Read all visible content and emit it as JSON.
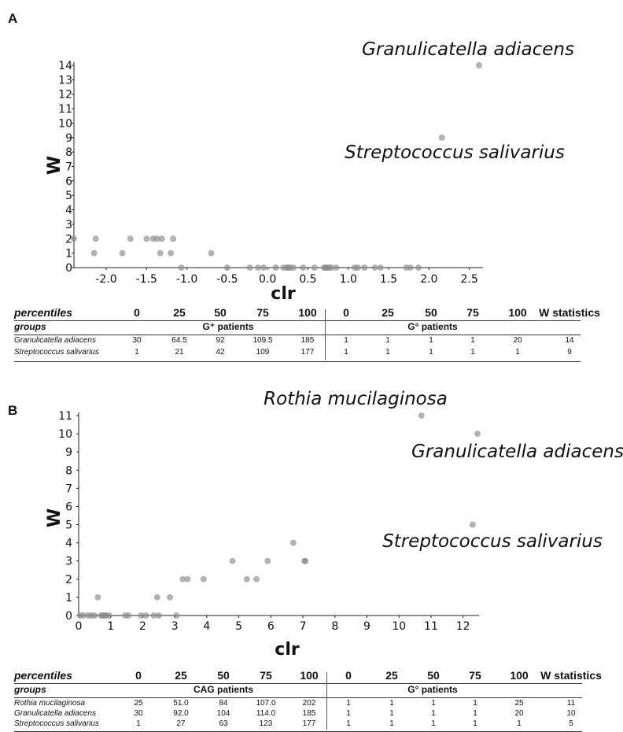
{
  "panels": [
    {
      "letter": "A",
      "stats_table": {
        "header": [
          "percentiles",
          "0",
          "25",
          "50",
          "75",
          "100",
          "0",
          "25",
          "50",
          "75",
          "100",
          "W statistics"
        ],
        "groups_label": "groups",
        "group1": "G⁺ patients",
        "group2": "G° patients",
        "rows": [
          [
            "Granulicatella adiacens",
            "30",
            "64.5",
            "92",
            "109.5",
            "185",
            "1",
            "1",
            "1",
            "1",
            "20",
            "14"
          ],
          [
            "Streptococcus salivarius",
            "1",
            "21",
            "42",
            "109",
            "177",
            "1",
            "1",
            "1",
            "1",
            "1",
            "9"
          ]
        ]
      }
    },
    {
      "letter": "B",
      "stats_table": {
        "header": [
          "percentiles",
          "0",
          "25",
          "50",
          "75",
          "100",
          "0",
          "25",
          "50",
          "75",
          "100",
          "W statistics"
        ],
        "groups_label": "groups",
        "group1": "CAG patients",
        "group2": "G° patients",
        "rows": [
          [
            "Rothia mucilaginosa",
            "25",
            "51.0",
            "84",
            "107.0",
            "202",
            "1",
            "1",
            "1",
            "1",
            "25",
            "11"
          ],
          [
            "Granulicatella adiacens",
            "30",
            "92.0",
            "104",
            "114.0",
            "185",
            "1",
            "1",
            "1",
            "1",
            "20",
            "10"
          ],
          [
            "Streptococcus salivarius",
            "1",
            "27",
            "63",
            "123",
            "177",
            "1",
            "1",
            "1",
            "1",
            "1",
            "5"
          ]
        ]
      }
    }
  ],
  "chart_data": [
    {
      "type": "scatter",
      "xlabel": "clr",
      "ylabel": "W",
      "xlim": [
        -2.4,
        2.65
      ],
      "ylim": [
        0,
        14
      ],
      "xticks": [
        "-2.0",
        "-1.5",
        "-1.0",
        "-0.5",
        "0.0",
        "0.5",
        "1.0",
        "1.5",
        "2.0",
        "2.5"
      ],
      "xtick_values": [
        -2.0,
        -1.5,
        -1.0,
        -0.5,
        0.0,
        0.5,
        1.0,
        1.5,
        2.0,
        2.5
      ],
      "yticks": [
        "0",
        "1",
        "2",
        "3",
        "4",
        "5",
        "6",
        "7",
        "8",
        "9",
        "10",
        "11",
        "12",
        "13",
        "14"
      ],
      "grid": false,
      "point_color": "#8a8a8a",
      "points": [
        {
          "x": -2.4,
          "y": 2
        },
        {
          "x": -2.13,
          "y": 2
        },
        {
          "x": -2.15,
          "y": 1
        },
        {
          "x": -1.8,
          "y": 1
        },
        {
          "x": -1.7,
          "y": 2
        },
        {
          "x": -1.5,
          "y": 2
        },
        {
          "x": -1.42,
          "y": 2
        },
        {
          "x": -1.37,
          "y": 2
        },
        {
          "x": -1.33,
          "y": 1
        },
        {
          "x": -1.31,
          "y": 2
        },
        {
          "x": -1.2,
          "y": 1
        },
        {
          "x": -1.17,
          "y": 2
        },
        {
          "x": -1.07,
          "y": 0
        },
        {
          "x": -0.7,
          "y": 1
        },
        {
          "x": -0.5,
          "y": 0
        },
        {
          "x": -0.22,
          "y": 0
        },
        {
          "x": -0.12,
          "y": 0
        },
        {
          "x": -0.05,
          "y": 0
        },
        {
          "x": 0.1,
          "y": 0
        },
        {
          "x": 0.2,
          "y": 0
        },
        {
          "x": 0.24,
          "y": 0
        },
        {
          "x": 0.26,
          "y": 0
        },
        {
          "x": 0.28,
          "y": 0
        },
        {
          "x": 0.32,
          "y": 0
        },
        {
          "x": 0.44,
          "y": 0
        },
        {
          "x": 0.58,
          "y": 0
        },
        {
          "x": 0.7,
          "y": 0
        },
        {
          "x": 0.72,
          "y": 0
        },
        {
          "x": 0.74,
          "y": 0
        },
        {
          "x": 0.76,
          "y": 0
        },
        {
          "x": 0.79,
          "y": 0
        },
        {
          "x": 0.85,
          "y": 0
        },
        {
          "x": 1.08,
          "y": 0
        },
        {
          "x": 1.12,
          "y": 0
        },
        {
          "x": 1.2,
          "y": 0
        },
        {
          "x": 1.33,
          "y": 0
        },
        {
          "x": 1.4,
          "y": 0
        },
        {
          "x": 1.72,
          "y": 0
        },
        {
          "x": 1.77,
          "y": 0
        },
        {
          "x": 1.87,
          "y": 0
        },
        {
          "x": 2.16,
          "y": 9,
          "label": "Streptococcus salivarius"
        },
        {
          "x": 2.62,
          "y": 14,
          "label": "Granulicatella adiacens"
        }
      ]
    },
    {
      "type": "scatter",
      "xlabel": "clr",
      "ylabel": "W",
      "xlim": [
        0,
        12.45
      ],
      "ylim": [
        0,
        11
      ],
      "xticks": [
        "0",
        "1",
        "2",
        "3",
        "4",
        "5",
        "6",
        "7",
        "8",
        "9",
        "10",
        "11",
        "12"
      ],
      "xtick_values": [
        0,
        1,
        2,
        3,
        4,
        5,
        6,
        7,
        8,
        9,
        10,
        11,
        12
      ],
      "yticks": [
        "0",
        "1",
        "2",
        "3",
        "4",
        "5",
        "6",
        "7",
        "8",
        "9",
        "10",
        "11"
      ],
      "grid": false,
      "point_color": "#8a8a8a",
      "points": [
        {
          "x": 0.05,
          "y": 0
        },
        {
          "x": 0.15,
          "y": 0
        },
        {
          "x": 0.3,
          "y": 0
        },
        {
          "x": 0.4,
          "y": 0
        },
        {
          "x": 0.5,
          "y": 0
        },
        {
          "x": 0.6,
          "y": 1
        },
        {
          "x": 0.7,
          "y": 0
        },
        {
          "x": 0.75,
          "y": 0
        },
        {
          "x": 0.8,
          "y": 0
        },
        {
          "x": 0.85,
          "y": 0
        },
        {
          "x": 0.95,
          "y": 0
        },
        {
          "x": 1.45,
          "y": 0
        },
        {
          "x": 1.55,
          "y": 0
        },
        {
          "x": 1.95,
          "y": 0
        },
        {
          "x": 2.1,
          "y": 0
        },
        {
          "x": 2.35,
          "y": 0
        },
        {
          "x": 2.45,
          "y": 1
        },
        {
          "x": 2.5,
          "y": 0
        },
        {
          "x": 2.85,
          "y": 1
        },
        {
          "x": 3.05,
          "y": 0
        },
        {
          "x": 3.25,
          "y": 2
        },
        {
          "x": 3.4,
          "y": 2
        },
        {
          "x": 3.9,
          "y": 2
        },
        {
          "x": 4.8,
          "y": 3
        },
        {
          "x": 5.25,
          "y": 2
        },
        {
          "x": 5.55,
          "y": 2
        },
        {
          "x": 5.9,
          "y": 3
        },
        {
          "x": 6.7,
          "y": 4
        },
        {
          "x": 7.05,
          "y": 3
        },
        {
          "x": 7.08,
          "y": 3
        },
        {
          "x": 10.7,
          "y": 11,
          "label": "Rothia mucilaginosa"
        },
        {
          "x": 12.45,
          "y": 10,
          "label": "Granulicatella adiacens"
        },
        {
          "x": 12.3,
          "y": 5,
          "label": "Streptococcus salivarius"
        }
      ]
    }
  ]
}
